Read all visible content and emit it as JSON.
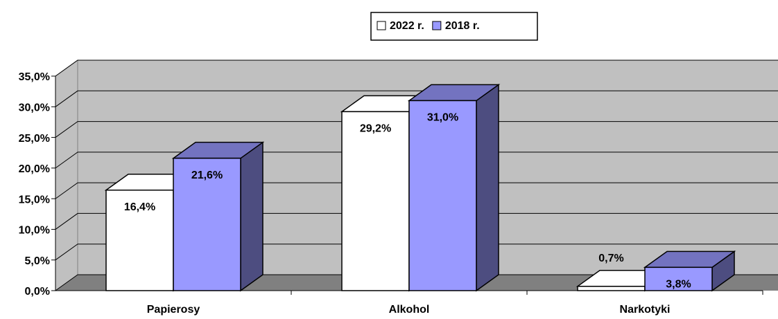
{
  "chart_data": {
    "type": "bar3d",
    "categories": [
      "Papierosy",
      "Alkohol",
      "Narkotyki"
    ],
    "series": [
      {
        "name": "2022 r.",
        "color": "#ffffff",
        "side": "#ffffff",
        "values": [
          16.4,
          29.2,
          0.7
        ],
        "value_labels": [
          "16,4%",
          "29,2%",
          "0,7%"
        ]
      },
      {
        "name": "2018 r.",
        "color": "#9999ff",
        "side": "#4d4d80",
        "values": [
          21.6,
          31.0,
          3.8
        ],
        "value_labels": [
          "21,6%",
          "31,0%",
          "3,8%"
        ]
      }
    ],
    "ylim": [
      0,
      35
    ],
    "yticks": [
      {
        "value": 0,
        "label": "0,0%"
      },
      {
        "value": 5,
        "label": "5,0%"
      },
      {
        "value": 10,
        "label": "10,0%"
      },
      {
        "value": 15,
        "label": "15,0%"
      },
      {
        "value": 20,
        "label": "20,0%"
      },
      {
        "value": 25,
        "label": "25,0%"
      },
      {
        "value": 30,
        "label": "30,0%"
      },
      {
        "value": 35,
        "label": "35,0%"
      }
    ],
    "grid": true
  }
}
